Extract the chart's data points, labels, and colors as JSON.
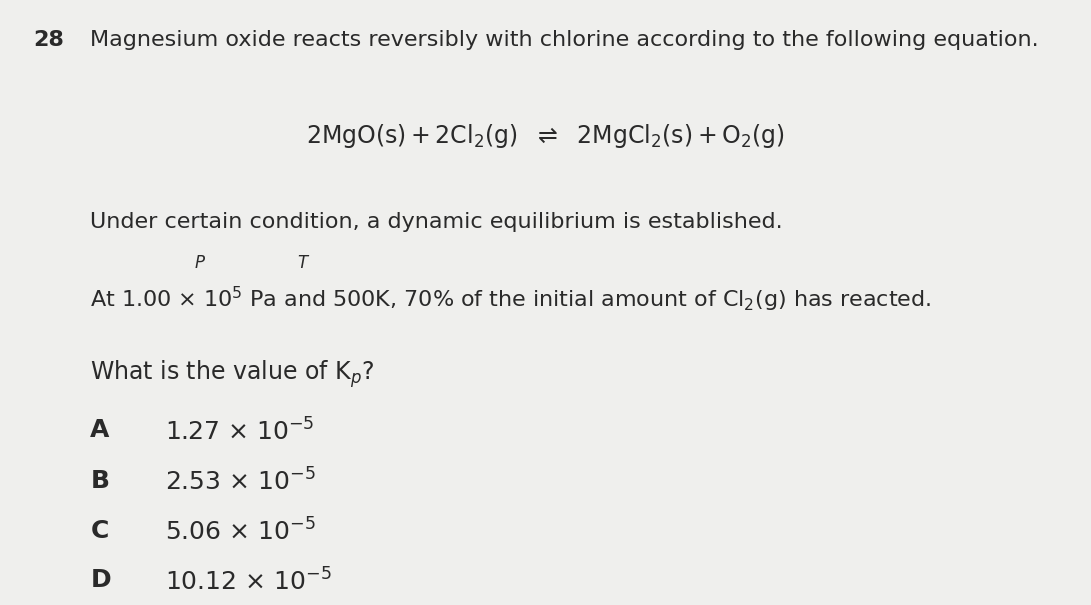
{
  "background_color": "#efefed",
  "text_color": "#2a2a2a",
  "question_number": "28",
  "line1": "Magnesium oxide reacts reversibly with chlorine according to the following equation.",
  "line3": "Under certain condition, a dynamic equilibrium is established.",
  "options": [
    {
      "letter": "A",
      "prefix": "1.27 x 10",
      "exp": "-5"
    },
    {
      "letter": "B",
      "prefix": "2.53 x 10",
      "exp": "-5"
    },
    {
      "letter": "C",
      "prefix": "5.06 x 10",
      "exp": "-5"
    },
    {
      "letter": "D",
      "prefix": "10.12 x 10",
      "exp": "-5"
    }
  ],
  "font_size_main": 16,
  "font_size_eq": 17,
  "font_size_options": 18,
  "font_bold": 16
}
